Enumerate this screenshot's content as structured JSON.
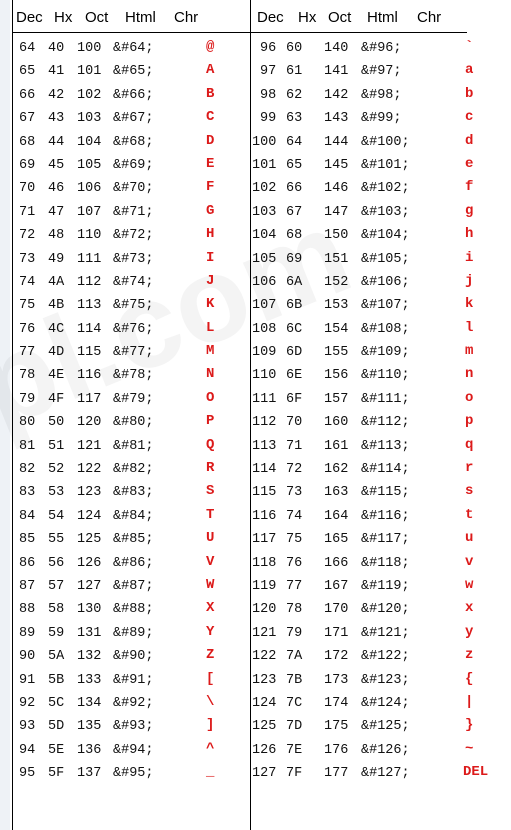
{
  "headers": {
    "left": [
      "Dec",
      "Hx",
      "Oct",
      "Html",
      "Chr"
    ],
    "right": [
      "Dec",
      "Hx",
      "Oct",
      "Html",
      "Chr"
    ]
  },
  "left_rows": [
    [
      "64",
      "40",
      "100",
      "&#64;",
      "@"
    ],
    [
      "65",
      "41",
      "101",
      "&#65;",
      "A"
    ],
    [
      "66",
      "42",
      "102",
      "&#66;",
      "B"
    ],
    [
      "67",
      "43",
      "103",
      "&#67;",
      "C"
    ],
    [
      "68",
      "44",
      "104",
      "&#68;",
      "D"
    ],
    [
      "69",
      "45",
      "105",
      "&#69;",
      "E"
    ],
    [
      "70",
      "46",
      "106",
      "&#70;",
      "F"
    ],
    [
      "71",
      "47",
      "107",
      "&#71;",
      "G"
    ],
    [
      "72",
      "48",
      "110",
      "&#72;",
      "H"
    ],
    [
      "73",
      "49",
      "111",
      "&#73;",
      "I"
    ],
    [
      "74",
      "4A",
      "112",
      "&#74;",
      "J"
    ],
    [
      "75",
      "4B",
      "113",
      "&#75;",
      "K"
    ],
    [
      "76",
      "4C",
      "114",
      "&#76;",
      "L"
    ],
    [
      "77",
      "4D",
      "115",
      "&#77;",
      "M"
    ],
    [
      "78",
      "4E",
      "116",
      "&#78;",
      "N"
    ],
    [
      "79",
      "4F",
      "117",
      "&#79;",
      "O"
    ],
    [
      "80",
      "50",
      "120",
      "&#80;",
      "P"
    ],
    [
      "81",
      "51",
      "121",
      "&#81;",
      "Q"
    ],
    [
      "82",
      "52",
      "122",
      "&#82;",
      "R"
    ],
    [
      "83",
      "53",
      "123",
      "&#83;",
      "S"
    ],
    [
      "84",
      "54",
      "124",
      "&#84;",
      "T"
    ],
    [
      "85",
      "55",
      "125",
      "&#85;",
      "U"
    ],
    [
      "86",
      "56",
      "126",
      "&#86;",
      "V"
    ],
    [
      "87",
      "57",
      "127",
      "&#87;",
      "W"
    ],
    [
      "88",
      "58",
      "130",
      "&#88;",
      "X"
    ],
    [
      "89",
      "59",
      "131",
      "&#89;",
      "Y"
    ],
    [
      "90",
      "5A",
      "132",
      "&#90;",
      "Z"
    ],
    [
      "91",
      "5B",
      "133",
      "&#91;",
      "["
    ],
    [
      "92",
      "5C",
      "134",
      "&#92;",
      "\\"
    ],
    [
      "93",
      "5D",
      "135",
      "&#93;",
      "]"
    ],
    [
      "94",
      "5E",
      "136",
      "&#94;",
      "^"
    ],
    [
      "95",
      "5F",
      "137",
      "&#95;",
      "_"
    ]
  ],
  "right_rows": [
    [
      "96",
      "60",
      "140",
      "&#96;",
      "`"
    ],
    [
      "97",
      "61",
      "141",
      "&#97;",
      "a"
    ],
    [
      "98",
      "62",
      "142",
      "&#98;",
      "b"
    ],
    [
      "99",
      "63",
      "143",
      "&#99;",
      "c"
    ],
    [
      "100",
      "64",
      "144",
      "&#100;",
      "d"
    ],
    [
      "101",
      "65",
      "145",
      "&#101;",
      "e"
    ],
    [
      "102",
      "66",
      "146",
      "&#102;",
      "f"
    ],
    [
      "103",
      "67",
      "147",
      "&#103;",
      "g"
    ],
    [
      "104",
      "68",
      "150",
      "&#104;",
      "h"
    ],
    [
      "105",
      "69",
      "151",
      "&#105;",
      "i"
    ],
    [
      "106",
      "6A",
      "152",
      "&#106;",
      "j"
    ],
    [
      "107",
      "6B",
      "153",
      "&#107;",
      "k"
    ],
    [
      "108",
      "6C",
      "154",
      "&#108;",
      "l"
    ],
    [
      "109",
      "6D",
      "155",
      "&#109;",
      "m"
    ],
    [
      "110",
      "6E",
      "156",
      "&#110;",
      "n"
    ],
    [
      "111",
      "6F",
      "157",
      "&#111;",
      "o"
    ],
    [
      "112",
      "70",
      "160",
      "&#112;",
      "p"
    ],
    [
      "113",
      "71",
      "161",
      "&#113;",
      "q"
    ],
    [
      "114",
      "72",
      "162",
      "&#114;",
      "r"
    ],
    [
      "115",
      "73",
      "163",
      "&#115;",
      "s"
    ],
    [
      "116",
      "74",
      "164",
      "&#116;",
      "t"
    ],
    [
      "117",
      "75",
      "165",
      "&#117;",
      "u"
    ],
    [
      "118",
      "76",
      "166",
      "&#118;",
      "v"
    ],
    [
      "119",
      "77",
      "167",
      "&#119;",
      "w"
    ],
    [
      "120",
      "78",
      "170",
      "&#120;",
      "x"
    ],
    [
      "121",
      "79",
      "171",
      "&#121;",
      "y"
    ],
    [
      "122",
      "7A",
      "172",
      "&#122;",
      "z"
    ],
    [
      "123",
      "7B",
      "173",
      "&#123;",
      "{"
    ],
    [
      "124",
      "7C",
      "174",
      "&#124;",
      "|"
    ],
    [
      "125",
      "7D",
      "175",
      "&#125;",
      "}"
    ],
    [
      "126",
      "7E",
      "176",
      "&#126;",
      "~"
    ],
    [
      "127",
      "7F",
      "177",
      "&#127;",
      "DEL"
    ]
  ],
  "colors": {
    "char": "#dc1a1a",
    "text": "#111111",
    "background": "#eef2f6"
  }
}
